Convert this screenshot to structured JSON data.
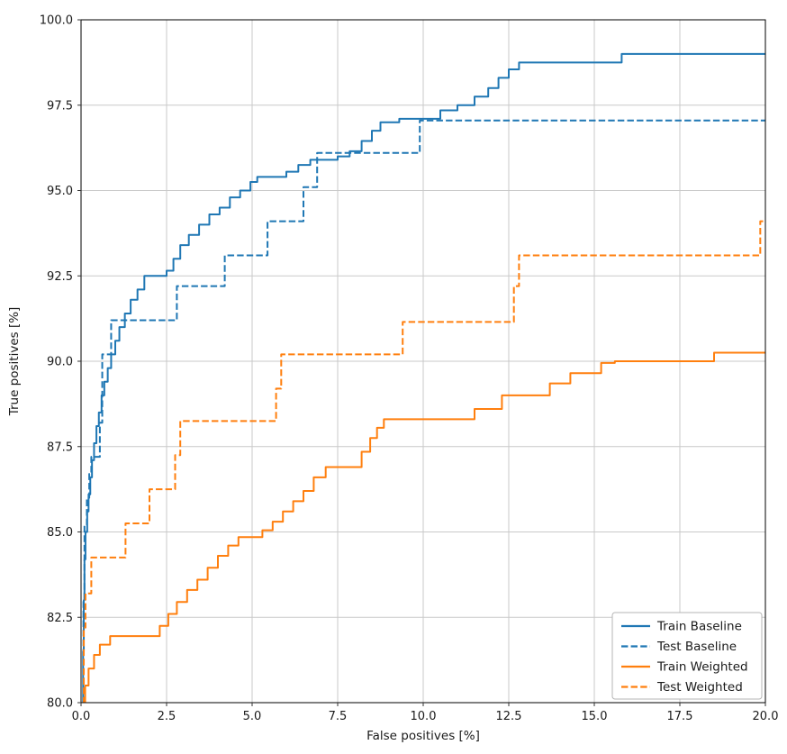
{
  "style": {
    "background": "#ffffff",
    "grid_color": "#c9c9c9",
    "border_color": "#000000",
    "tick_color": "#333333",
    "text_color": "#1a1a1a",
    "legend_border": "#b5b5b5",
    "legend_background": "#ffffff",
    "blue": "#1f77b4",
    "orange": "#ff7f0e"
  },
  "chart_data": {
    "type": "line",
    "title": "",
    "xlabel": "False positives [%]",
    "ylabel": "True positives [%]",
    "xlim": [
      0,
      20
    ],
    "ylim": [
      80,
      100
    ],
    "grid": true,
    "drawstyle": "steps-post",
    "legend_position": "lower right",
    "xticks": [
      {
        "value": 0.0,
        "label": "0.0"
      },
      {
        "value": 2.5,
        "label": "2.5"
      },
      {
        "value": 5.0,
        "label": "5.0"
      },
      {
        "value": 7.5,
        "label": "7.5"
      },
      {
        "value": 10.0,
        "label": "10.0"
      },
      {
        "value": 12.5,
        "label": "12.5"
      },
      {
        "value": 15.0,
        "label": "15.0"
      },
      {
        "value": 17.5,
        "label": "17.5"
      },
      {
        "value": 20.0,
        "label": "20.0"
      }
    ],
    "yticks": [
      {
        "value": 80.0,
        "label": "80.0"
      },
      {
        "value": 82.5,
        "label": "82.5"
      },
      {
        "value": 85.0,
        "label": "85.0"
      },
      {
        "value": 87.5,
        "label": "87.5"
      },
      {
        "value": 90.0,
        "label": "90.0"
      },
      {
        "value": 92.5,
        "label": "92.5"
      },
      {
        "value": 95.0,
        "label": "95.0"
      },
      {
        "value": 97.5,
        "label": "97.5"
      },
      {
        "value": 100.0,
        "label": "100.0"
      }
    ],
    "series": [
      {
        "name": "Train Baseline",
        "color": "#1f77b4",
        "dash": "solid",
        "points": [
          [
            0.05,
            80.0
          ],
          [
            0.06,
            81.5
          ],
          [
            0.08,
            83.0
          ],
          [
            0.1,
            84.2
          ],
          [
            0.13,
            85.0
          ],
          [
            0.18,
            85.6
          ],
          [
            0.22,
            86.1
          ],
          [
            0.27,
            86.6
          ],
          [
            0.32,
            87.1
          ],
          [
            0.38,
            87.6
          ],
          [
            0.45,
            88.1
          ],
          [
            0.52,
            88.5
          ],
          [
            0.6,
            89.0
          ],
          [
            0.68,
            89.4
          ],
          [
            0.78,
            89.8
          ],
          [
            0.88,
            90.2
          ],
          [
            1.0,
            90.6
          ],
          [
            1.12,
            91.0
          ],
          [
            1.28,
            91.4
          ],
          [
            1.45,
            91.8
          ],
          [
            1.65,
            92.1
          ],
          [
            1.85,
            92.5
          ],
          [
            2.5,
            92.65
          ],
          [
            2.7,
            93.0
          ],
          [
            2.9,
            93.4
          ],
          [
            3.15,
            93.7
          ],
          [
            3.45,
            94.0
          ],
          [
            3.75,
            94.3
          ],
          [
            4.05,
            94.5
          ],
          [
            4.35,
            94.8
          ],
          [
            4.65,
            95.0
          ],
          [
            4.95,
            95.25
          ],
          [
            5.15,
            95.4
          ],
          [
            6.0,
            95.55
          ],
          [
            6.35,
            95.75
          ],
          [
            6.7,
            95.9
          ],
          [
            7.5,
            96.0
          ],
          [
            7.85,
            96.15
          ],
          [
            8.2,
            96.45
          ],
          [
            8.5,
            96.75
          ],
          [
            8.75,
            97.0
          ],
          [
            9.3,
            97.1
          ],
          [
            10.5,
            97.35
          ],
          [
            11.0,
            97.5
          ],
          [
            11.5,
            97.75
          ],
          [
            11.9,
            98.0
          ],
          [
            12.2,
            98.3
          ],
          [
            12.5,
            98.55
          ],
          [
            12.8,
            98.75
          ],
          [
            15.8,
            99.0
          ],
          [
            20.0,
            99.0
          ]
        ]
      },
      {
        "name": "Test Baseline",
        "color": "#1f77b4",
        "dash": "dashed",
        "points": [
          [
            0.05,
            80.0
          ],
          [
            0.07,
            83.0
          ],
          [
            0.1,
            85.2
          ],
          [
            0.17,
            86.0
          ],
          [
            0.24,
            86.7
          ],
          [
            0.3,
            87.2
          ],
          [
            0.55,
            88.2
          ],
          [
            0.62,
            90.2
          ],
          [
            0.88,
            91.2
          ],
          [
            2.8,
            92.2
          ],
          [
            4.2,
            93.1
          ],
          [
            5.45,
            94.1
          ],
          [
            6.5,
            95.1
          ],
          [
            6.9,
            96.1
          ],
          [
            9.9,
            97.05
          ],
          [
            20.0,
            97.05
          ]
        ]
      },
      {
        "name": "Train Weighted",
        "color": "#ff7f0e",
        "dash": "solid",
        "points": [
          [
            0.05,
            80.0
          ],
          [
            0.12,
            80.5
          ],
          [
            0.22,
            81.0
          ],
          [
            0.38,
            81.4
          ],
          [
            0.55,
            81.7
          ],
          [
            0.85,
            81.95
          ],
          [
            2.3,
            82.25
          ],
          [
            2.55,
            82.6
          ],
          [
            2.8,
            82.95
          ],
          [
            3.1,
            83.3
          ],
          [
            3.4,
            83.6
          ],
          [
            3.7,
            83.95
          ],
          [
            4.0,
            84.3
          ],
          [
            4.3,
            84.6
          ],
          [
            4.6,
            84.85
          ],
          [
            5.3,
            85.05
          ],
          [
            5.6,
            85.3
          ],
          [
            5.9,
            85.6
          ],
          [
            6.2,
            85.9
          ],
          [
            6.5,
            86.2
          ],
          [
            6.8,
            86.6
          ],
          [
            7.15,
            86.9
          ],
          [
            8.2,
            87.35
          ],
          [
            8.45,
            87.75
          ],
          [
            8.65,
            88.05
          ],
          [
            8.85,
            88.3
          ],
          [
            11.5,
            88.6
          ],
          [
            12.3,
            89.0
          ],
          [
            13.7,
            89.35
          ],
          [
            14.3,
            89.65
          ],
          [
            15.2,
            89.95
          ],
          [
            15.6,
            90.0
          ],
          [
            18.5,
            90.25
          ],
          [
            20.0,
            90.25
          ]
        ]
      },
      {
        "name": "Test Weighted",
        "color": "#ff7f0e",
        "dash": "dashed",
        "points": [
          [
            0.05,
            80.0
          ],
          [
            0.08,
            82.2
          ],
          [
            0.13,
            83.2
          ],
          [
            0.3,
            84.25
          ],
          [
            1.3,
            85.25
          ],
          [
            2.0,
            86.25
          ],
          [
            2.75,
            87.25
          ],
          [
            2.9,
            88.25
          ],
          [
            5.7,
            89.2
          ],
          [
            5.85,
            90.2
          ],
          [
            9.4,
            91.15
          ],
          [
            12.65,
            92.2
          ],
          [
            12.8,
            93.1
          ],
          [
            19.85,
            94.1
          ],
          [
            20.0,
            94.1
          ]
        ]
      }
    ],
    "legend_entries": [
      "Train Baseline",
      "Test Baseline",
      "Train Weighted",
      "Test Weighted"
    ]
  }
}
